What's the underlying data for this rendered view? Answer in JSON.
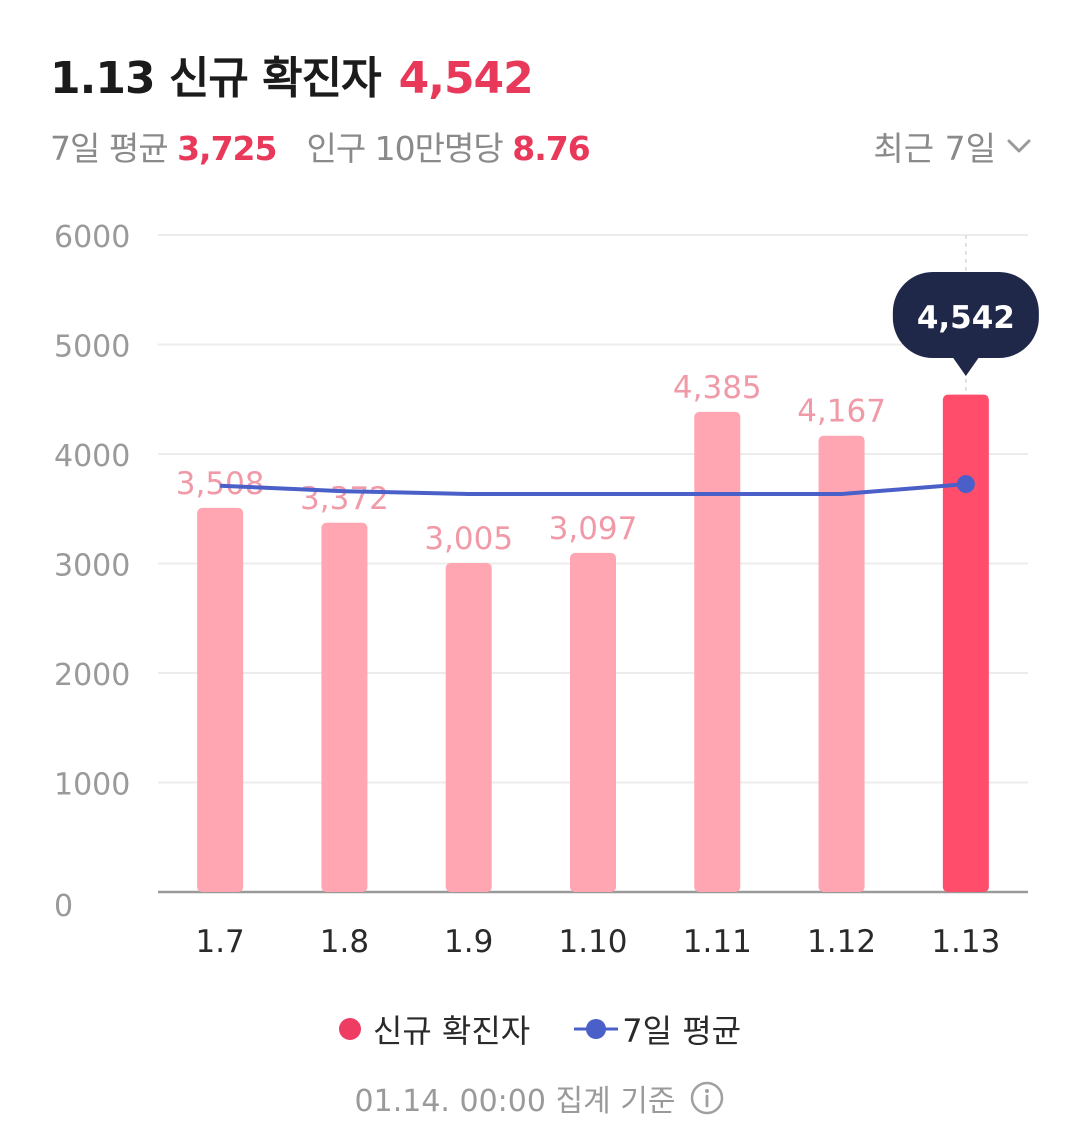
{
  "header": {
    "title": "1.13 신규 확진자",
    "value": "4,542",
    "avg_label": "7일 평균",
    "avg_value": "3,725",
    "per_label": "인구 10만명당",
    "per_value": "8.76",
    "period_label": "최근 7일",
    "period_icon": "chevron-down-icon"
  },
  "chart_data": {
    "type": "bar",
    "categories": [
      "1.7",
      "1.8",
      "1.9",
      "1.10",
      "1.11",
      "1.12",
      "1.13"
    ],
    "series": [
      {
        "name": "신규 확진자",
        "type": "bar",
        "values": [
          3508,
          3372,
          3005,
          3097,
          4385,
          4167,
          4542
        ],
        "labels": [
          "3,508",
          "3,372",
          "3,005",
          "3,097",
          "4,385",
          "4,167",
          "4,542"
        ]
      },
      {
        "name": "7일 평균",
        "type": "line",
        "values": [
          3710,
          3660,
          3635,
          3635,
          3635,
          3635,
          3725
        ]
      }
    ],
    "yticks": [
      "6000",
      "5000",
      "4000",
      "3000",
      "2000",
      "1000",
      "0"
    ],
    "ylim": [
      0,
      6000
    ],
    "highlight_index": 6,
    "tooltip": "4,542",
    "grid": true,
    "colors": {
      "bar": "#ffa6b2",
      "bar_highlight": "#ff4d6b",
      "line": "#4a5fc8",
      "label": "#f09aa8",
      "tooltip_bg": "#20284a"
    }
  },
  "legend": {
    "bar_label": "신규 확진자",
    "line_label": "7일 평균"
  },
  "footer": {
    "text": "01.14. 00:00 집계 기준",
    "icon": "info-icon"
  }
}
